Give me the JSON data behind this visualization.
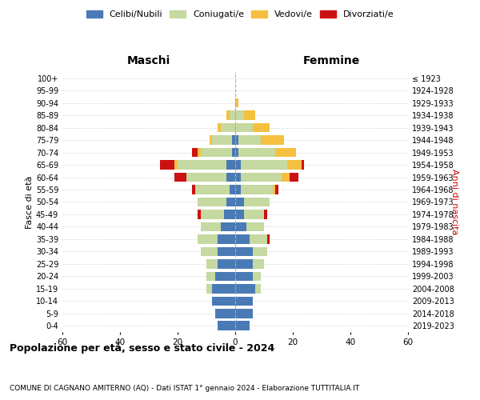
{
  "age_groups": [
    "0-4",
    "5-9",
    "10-14",
    "15-19",
    "20-24",
    "25-29",
    "30-34",
    "35-39",
    "40-44",
    "45-49",
    "50-54",
    "55-59",
    "60-64",
    "65-69",
    "70-74",
    "75-79",
    "80-84",
    "85-89",
    "90-94",
    "95-99",
    "100+"
  ],
  "birth_years": [
    "2019-2023",
    "2014-2018",
    "2009-2013",
    "2004-2008",
    "1999-2003",
    "1994-1998",
    "1989-1993",
    "1984-1988",
    "1979-1983",
    "1974-1978",
    "1969-1973",
    "1964-1968",
    "1959-1963",
    "1954-1958",
    "1949-1953",
    "1944-1948",
    "1939-1943",
    "1934-1938",
    "1929-1933",
    "1924-1928",
    "≤ 1923"
  ],
  "colors": {
    "celibi": "#4a7ab5",
    "coniugati": "#c5d9a0",
    "vedovi": "#f5c040",
    "divorziati": "#cc1111"
  },
  "males": {
    "celibi": [
      6,
      7,
      8,
      8,
      7,
      6,
      6,
      6,
      5,
      4,
      3,
      2,
      3,
      3,
      1,
      1,
      0,
      0,
      0,
      0,
      0
    ],
    "coniugati": [
      0,
      0,
      0,
      2,
      3,
      4,
      6,
      7,
      7,
      8,
      10,
      12,
      14,
      17,
      11,
      7,
      5,
      2,
      0,
      0,
      0
    ],
    "vedovi": [
      0,
      0,
      0,
      0,
      0,
      0,
      0,
      0,
      0,
      0,
      0,
      0,
      0,
      1,
      1,
      1,
      1,
      1,
      0,
      0,
      0
    ],
    "divorziati": [
      0,
      0,
      0,
      0,
      0,
      0,
      0,
      0,
      0,
      1,
      0,
      1,
      4,
      5,
      2,
      0,
      0,
      0,
      0,
      0,
      0
    ]
  },
  "females": {
    "celibi": [
      5,
      6,
      6,
      7,
      6,
      6,
      6,
      5,
      4,
      3,
      3,
      2,
      2,
      2,
      1,
      1,
      0,
      0,
      0,
      0,
      0
    ],
    "coniugati": [
      0,
      0,
      0,
      2,
      3,
      4,
      5,
      6,
      6,
      7,
      9,
      11,
      14,
      16,
      13,
      8,
      6,
      3,
      0,
      0,
      0
    ],
    "vedovi": [
      0,
      0,
      0,
      0,
      0,
      0,
      0,
      0,
      0,
      0,
      0,
      1,
      3,
      5,
      7,
      8,
      6,
      4,
      1,
      0,
      0
    ],
    "divorziati": [
      0,
      0,
      0,
      0,
      0,
      0,
      0,
      1,
      0,
      1,
      0,
      1,
      3,
      1,
      0,
      0,
      0,
      0,
      0,
      0,
      0
    ]
  },
  "xlim": 60,
  "title": "Popolazione per età, sesso e stato civile - 2024",
  "subtitle": "COMUNE DI CAGNANO AMITERNO (AQ) - Dati ISTAT 1° gennaio 2024 - Elaborazione TUTTITALIA.IT",
  "ylabel_left": "Fasce di età",
  "ylabel_right": "Anni di nascita",
  "xlabel_left": "Maschi",
  "xlabel_right": "Femmine",
  "background_color": "#ffffff",
  "grid_color": "#cccccc"
}
